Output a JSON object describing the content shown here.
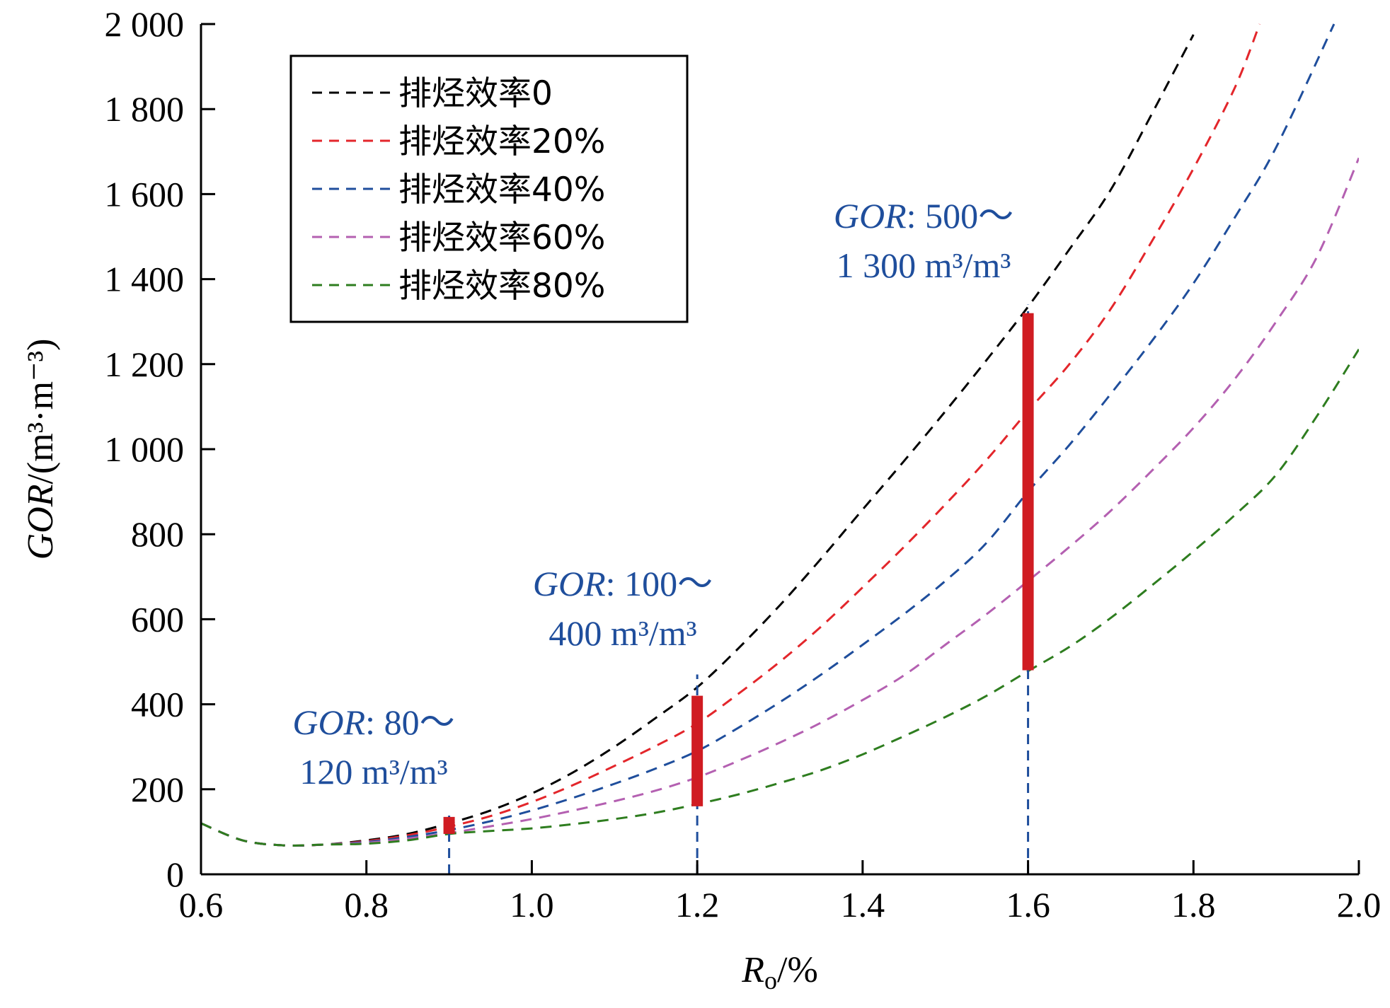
{
  "chart_data": {
    "type": "line",
    "x_axis": {
      "label_symbol": "R",
      "label_subscript": "o",
      "label_suffix": "/%",
      "range": [
        0.6,
        2.0
      ],
      "ticks": [
        0.6,
        0.8,
        1.0,
        1.2,
        1.4,
        1.6,
        1.8,
        2.0
      ],
      "tick_labels": [
        "0.6",
        "0.8",
        "1.0",
        "1.2",
        "1.4",
        "1.6",
        "1.8",
        "2.0"
      ]
    },
    "y_axis": {
      "label_italic": "GOR",
      "label_suffix": "/(m³·m⁻³)",
      "range": [
        0,
        2000
      ],
      "ticks": [
        0,
        200,
        400,
        600,
        800,
        1000,
        1200,
        1400,
        1600,
        1800,
        2000
      ],
      "tick_labels": [
        "0",
        "200",
        "400",
        "600",
        "800",
        "1 000",
        "1 200",
        "1 400",
        "1 600",
        "1 800",
        "2 000"
      ]
    },
    "grid": false,
    "legend_position": "top-left",
    "series": [
      {
        "name": "排烃效率0",
        "color": "#000000",
        "x": [
          0.6,
          0.65,
          0.7,
          0.75,
          0.8,
          0.85,
          0.9,
          0.95,
          1.0,
          1.05,
          1.1,
          1.15,
          1.2,
          1.25,
          1.3,
          1.35,
          1.4,
          1.45,
          1.5,
          1.55,
          1.6,
          1.65,
          1.7,
          1.75,
          1.8
        ],
        "y": [
          120,
          80,
          68,
          70,
          80,
          95,
          120,
          150,
          190,
          240,
          300,
          368,
          440,
          532,
          633,
          743,
          858,
          972,
          1089,
          1210,
          1335,
          1470,
          1610,
          1790,
          1975
        ]
      },
      {
        "name": "排烃效率20%",
        "color": "#e3262b",
        "x": [
          0.6,
          0.65,
          0.7,
          0.75,
          0.8,
          0.85,
          0.9,
          0.95,
          1.0,
          1.05,
          1.1,
          1.15,
          1.2,
          1.25,
          1.3,
          1.35,
          1.4,
          1.45,
          1.5,
          1.55,
          1.6,
          1.65,
          1.7,
          1.75,
          1.8,
          1.85,
          1.88
        ],
        "y": [
          120,
          80,
          68,
          70,
          78,
          92,
          112,
          137,
          170,
          210,
          255,
          302,
          355,
          425,
          500,
          583,
          675,
          770,
          870,
          975,
          1090,
          1200,
          1330,
          1490,
          1660,
          1850,
          2000
        ]
      },
      {
        "name": "排烃效率40%",
        "color": "#1f4e9c",
        "x": [
          0.6,
          0.65,
          0.7,
          0.75,
          0.8,
          0.85,
          0.9,
          0.95,
          1.0,
          1.05,
          1.1,
          1.15,
          1.2,
          1.25,
          1.3,
          1.35,
          1.4,
          1.45,
          1.5,
          1.55,
          1.6,
          1.65,
          1.7,
          1.75,
          1.8,
          1.85,
          1.9,
          1.97
        ],
        "y": [
          120,
          80,
          68,
          70,
          76,
          88,
          104,
          125,
          150,
          180,
          213,
          249,
          290,
          345,
          405,
          470,
          540,
          612,
          690,
          780,
          900,
          1010,
          1130,
          1255,
          1390,
          1545,
          1710,
          2000
        ]
      },
      {
        "name": "排烃效率60%",
        "color": "#b460b1",
        "x": [
          0.6,
          0.65,
          0.7,
          0.75,
          0.8,
          0.85,
          0.9,
          0.95,
          1.0,
          1.05,
          1.1,
          1.15,
          1.2,
          1.25,
          1.3,
          1.35,
          1.4,
          1.45,
          1.5,
          1.55,
          1.6,
          1.65,
          1.7,
          1.75,
          1.8,
          1.85,
          1.9,
          1.95,
          2.0
        ],
        "y": [
          120,
          80,
          68,
          70,
          74,
          84,
          97,
          113,
          130,
          150,
          172,
          197,
          228,
          267,
          310,
          357,
          410,
          468,
          540,
          612,
          690,
          770,
          855,
          950,
          1050,
          1165,
          1300,
          1455,
          1685
        ]
      },
      {
        "name": "排烃效率80%",
        "color": "#2e7d1f",
        "x": [
          0.6,
          0.65,
          0.7,
          0.75,
          0.8,
          0.85,
          0.9,
          0.95,
          1.0,
          1.05,
          1.1,
          1.15,
          1.2,
          1.25,
          1.3,
          1.35,
          1.4,
          1.45,
          1.5,
          1.55,
          1.6,
          1.65,
          1.7,
          1.75,
          1.8,
          1.85,
          1.9,
          1.95,
          2.0
        ],
        "y": [
          120,
          80,
          68,
          70,
          72,
          80,
          95,
          102,
          108,
          118,
          130,
          145,
          165,
          188,
          215,
          245,
          282,
          325,
          370,
          420,
          478,
          535,
          603,
          680,
          760,
          845,
          940,
          1080,
          1235
        ]
      }
    ],
    "range_bars": [
      {
        "x": 0.9,
        "y_min": 95,
        "y_max": 135,
        "color": "#d01c22"
      },
      {
        "x": 1.2,
        "y_min": 160,
        "y_max": 420,
        "color": "#d01c22"
      },
      {
        "x": 1.6,
        "y_min": 480,
        "y_max": 1320,
        "color": "#d01c22"
      }
    ],
    "annotations": [
      {
        "x": 0.9,
        "line_to_y": 140,
        "line1_prefix": "GOR",
        "line1_rest": ": 80～",
        "line2": "120 m³/m³"
      },
      {
        "x": 1.2,
        "line_to_y": 470,
        "line1_prefix": "GOR",
        "line1_rest": ": 100～",
        "line2": "400 m³/m³"
      },
      {
        "x": 1.6,
        "line_to_y": 1340,
        "line1_prefix": "GOR",
        "line1_rest": ": 500～",
        "line2": "1 300 m³/m³"
      }
    ]
  }
}
